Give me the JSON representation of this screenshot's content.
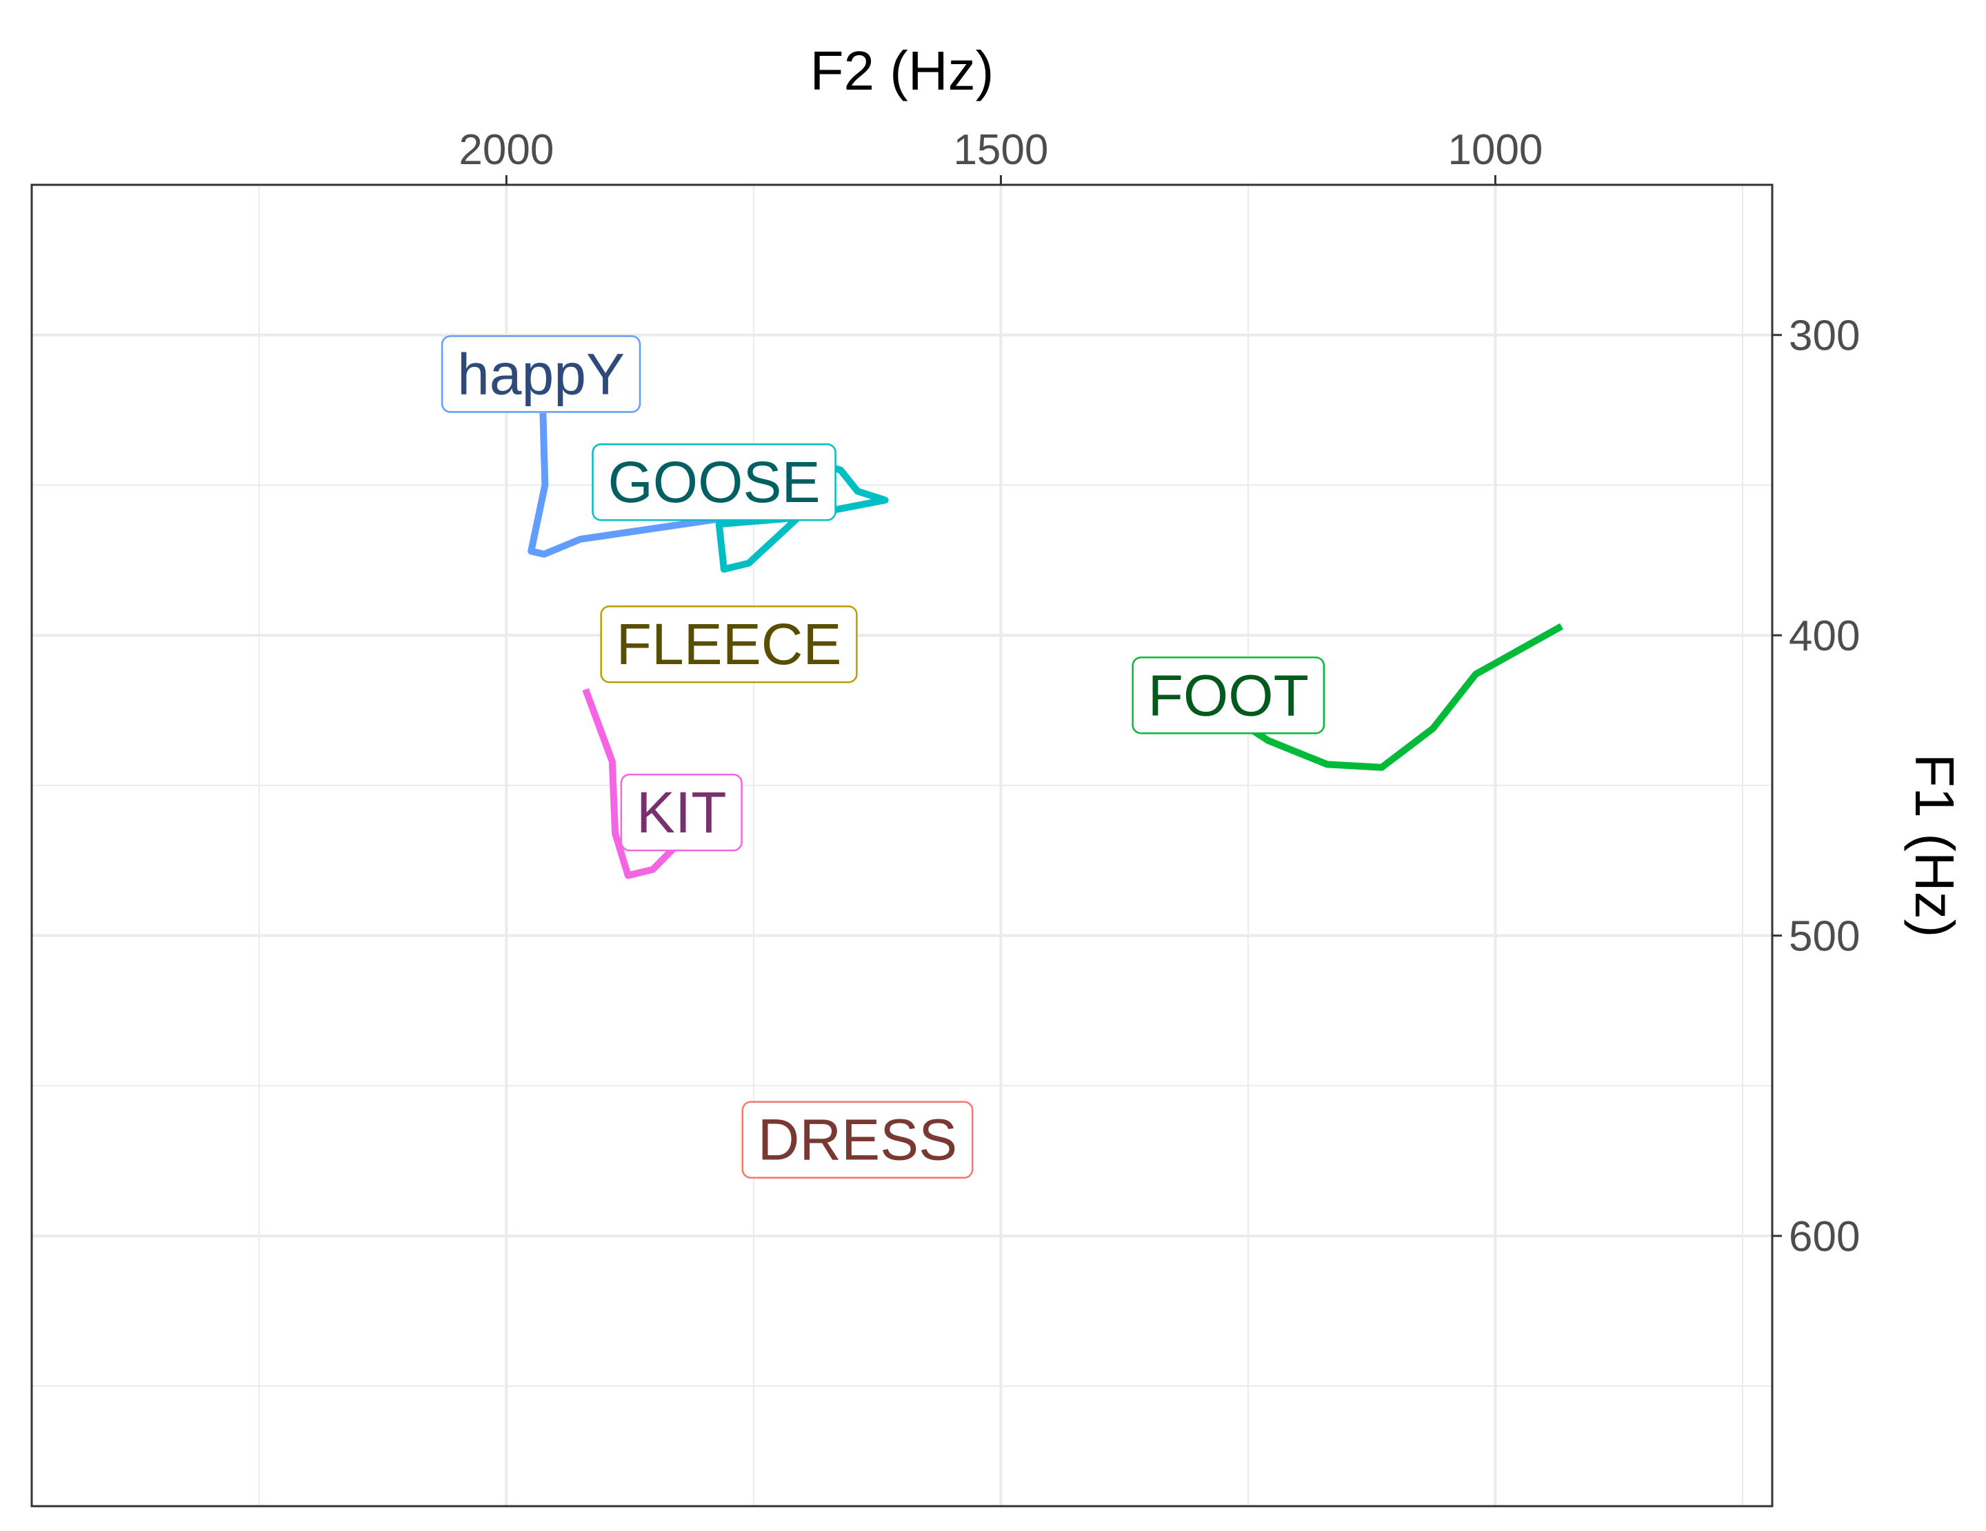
{
  "chart_data": {
    "type": "line",
    "xlabel": "F2 (Hz)",
    "ylabel": "F1 (Hz)",
    "x_axis_position": "top",
    "y_axis_position": "right",
    "x_reversed": true,
    "y_reversed": true,
    "xlim": [
      2480,
      720
    ],
    "ylim": [
      250,
      690
    ],
    "x_major_ticks": [
      2000,
      1500,
      1000
    ],
    "x_minor_ticks": [
      2250,
      1750,
      1250,
      750
    ],
    "y_major_ticks": [
      300,
      400,
      500,
      600
    ],
    "y_minor_ticks": [
      250,
      350,
      450,
      550,
      650
    ],
    "grid": true,
    "background": "white with light grey grid",
    "series": [
      {
        "name": "happY",
        "color": "#619CFF",
        "label_text_color": "#2E4A7A",
        "points": [
          [
            1963,
            326
          ],
          [
            1961,
            350
          ],
          [
            1975,
            372
          ],
          [
            1962,
            373
          ],
          [
            1925,
            368
          ],
          [
            1780,
            361
          ]
        ],
        "label_at": [
          1965,
          313
        ]
      },
      {
        "name": "GOOSE",
        "color": "#00BFC4",
        "label_text_color": "#005F62",
        "points": [
          [
            1692,
            342
          ],
          [
            1662,
            345
          ],
          [
            1645,
            352
          ],
          [
            1617,
            355
          ],
          [
            1712,
            361
          ],
          [
            1785,
            363
          ],
          [
            1780,
            378
          ],
          [
            1755,
            376
          ],
          [
            1686,
            355
          ]
        ],
        "label_at": [
          1790,
          349
        ]
      },
      {
        "name": "FLEECE",
        "color": "#B79F00",
        "label_text_color": "#594D00",
        "points": [],
        "label_at": [
          1775,
          403
        ]
      },
      {
        "name": "FOOT",
        "color": "#00BA38",
        "label_text_color": "#005A1B",
        "points": [
          [
            1352,
            425
          ],
          [
            1290,
            422
          ],
          [
            1230,
            435
          ],
          [
            1170,
            443
          ],
          [
            1115,
            444
          ],
          [
            1063,
            431
          ],
          [
            1020,
            413
          ],
          [
            933,
            397
          ]
        ],
        "label_at": [
          1270,
          420
        ]
      },
      {
        "name": "KIT",
        "color": "#F564E3",
        "label_text_color": "#7A2F6E",
        "points": [
          [
            1920,
            418
          ],
          [
            1893,
            442
          ],
          [
            1890,
            466
          ],
          [
            1877,
            480
          ],
          [
            1852,
            478
          ],
          [
            1828,
            470
          ]
        ],
        "label_at": [
          1823,
          459
        ]
      },
      {
        "name": "DRESS",
        "color": "#F8766D",
        "label_text_color": "#7A3833",
        "points": [],
        "label_at": [
          1645,
          568
        ]
      }
    ]
  }
}
